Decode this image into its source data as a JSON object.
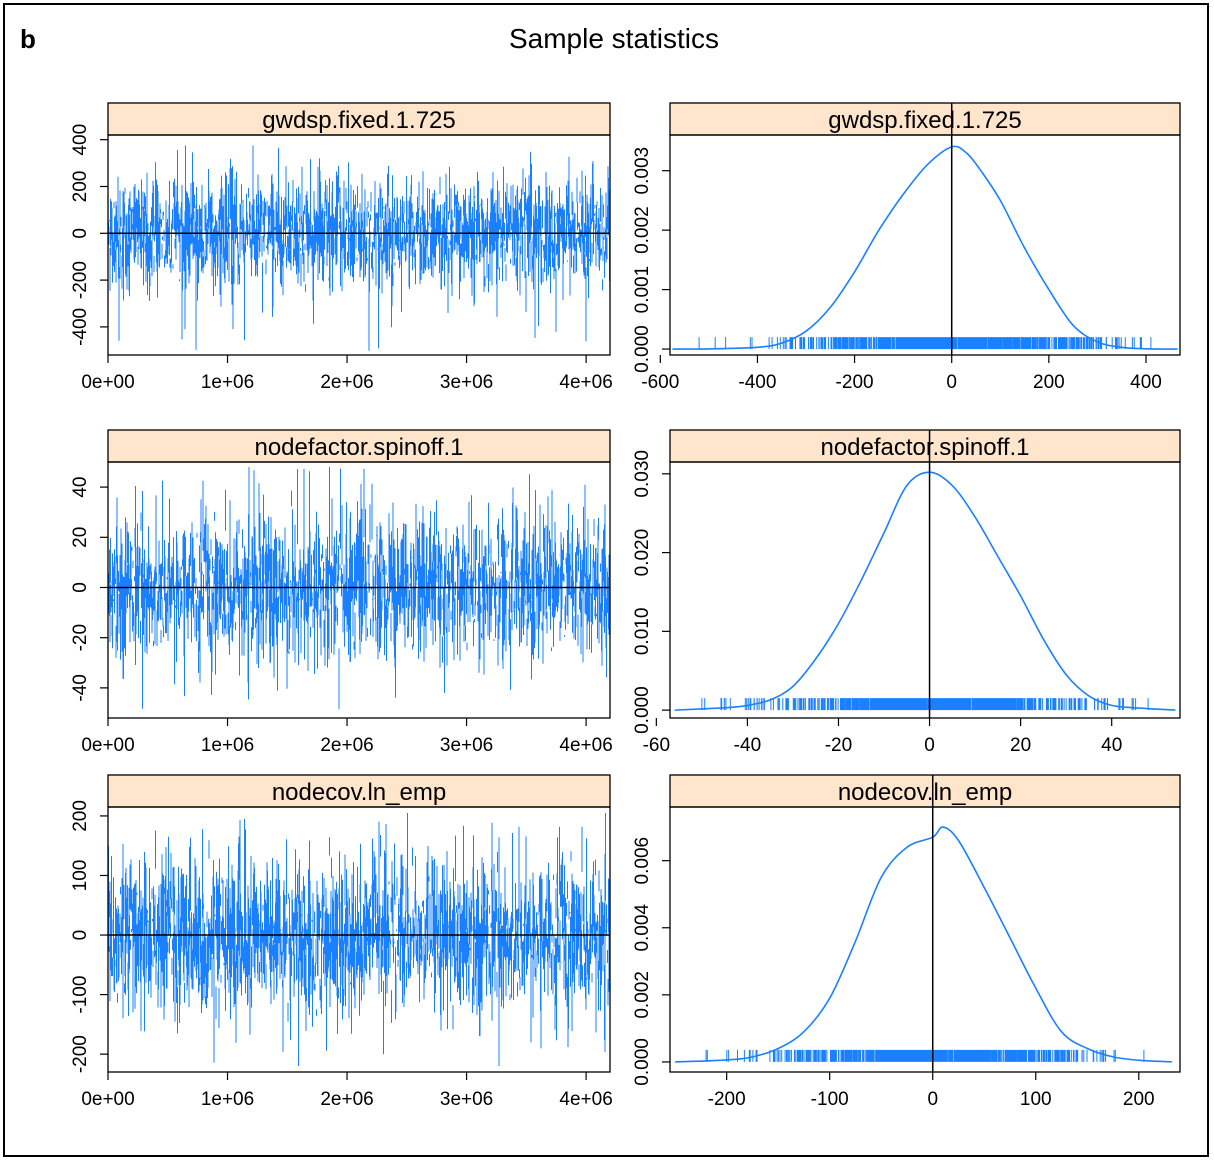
{
  "figure": {
    "panel_letter": "b",
    "title": "Sample statistics"
  },
  "chart_data": [
    {
      "type": "line",
      "strip_title": "gwdsp.fixed.1.725",
      "x_ticks": [
        "0e+00",
        "1e+06",
        "2e+06",
        "3e+06",
        "4e+06"
      ],
      "x_tick_values": [
        0,
        1000000,
        2000000,
        3000000,
        4000000
      ],
      "y_ticks": [
        "-400",
        "-200",
        "0",
        "200",
        "400"
      ],
      "y_tick_values": [
        -400,
        -200,
        0,
        200,
        400
      ],
      "xlim": [
        0,
        4200000
      ],
      "ylim": [
        -520,
        420
      ],
      "reference_line_y": 0,
      "series_summary": {
        "center": 0,
        "typical_range": [
          -250,
          250
        ],
        "min": -520,
        "max": 375,
        "n_points_x_max": 4200000
      },
      "color": "#1a80ff"
    },
    {
      "type": "line",
      "strip_title": "gwdsp.fixed.1.725",
      "x_ticks": [
        "-600",
        "-400",
        "-200",
        "0",
        "200",
        "400"
      ],
      "x_tick_values": [
        -600,
        -400,
        -200,
        0,
        200,
        400
      ],
      "y_ticks": [
        "0.000",
        "0.001",
        "0.002",
        "0.003"
      ],
      "y_tick_values": [
        0,
        0.001,
        0.002,
        0.003
      ],
      "xlim": [
        -580,
        470
      ],
      "ylim": [
        -0.0001,
        0.0036
      ],
      "reference_line_x": 0,
      "density": {
        "x": [
          -575,
          -500,
          -400,
          -350,
          -300,
          -250,
          -200,
          -150,
          -100,
          -50,
          0,
          30,
          60,
          100,
          150,
          200,
          250,
          300,
          350,
          400,
          465
        ],
        "y": [
          0,
          2e-06,
          3e-05,
          0.0001,
          0.0003,
          0.0007,
          0.0013,
          0.002,
          0.0026,
          0.0031,
          0.0034,
          0.0033,
          0.003,
          0.0025,
          0.0017,
          0.001,
          0.0004,
          0.00012,
          3e-05,
          5e-06,
          0
        ]
      },
      "rug_range": [
        -520,
        410
      ],
      "color": "#1a80ff"
    },
    {
      "type": "line",
      "strip_title": "nodefactor.spinoff.1",
      "x_ticks": [
        "0e+00",
        "1e+06",
        "2e+06",
        "3e+06",
        "4e+06"
      ],
      "x_tick_values": [
        0,
        1000000,
        2000000,
        3000000,
        4000000
      ],
      "y_ticks": [
        "-40",
        "-20",
        "0",
        "20",
        "40"
      ],
      "y_tick_values": [
        -40,
        -20,
        0,
        20,
        40
      ],
      "xlim": [
        0,
        4200000
      ],
      "ylim": [
        -52,
        50
      ],
      "reference_line_y": 0,
      "series_summary": {
        "center": 0,
        "typical_range": [
          -30,
          30
        ],
        "min": -50,
        "max": 48,
        "n_points_x_max": 4200000
      },
      "color": "#1a80ff"
    },
    {
      "type": "line",
      "strip_title": "nodefactor.spinoff.1",
      "x_ticks": [
        "-60",
        "-40",
        "-20",
        "0",
        "20",
        "40"
      ],
      "x_tick_values": [
        -60,
        -40,
        -20,
        0,
        20,
        40
      ],
      "y_ticks": [
        "0.000",
        "0.010",
        "0.020",
        "0.030"
      ],
      "y_tick_values": [
        0,
        0.01,
        0.02,
        0.03
      ],
      "xlim": [
        -57,
        55
      ],
      "ylim": [
        -0.001,
        0.0315
      ],
      "reference_line_x": 0,
      "density": {
        "x": [
          -56,
          -45,
          -40,
          -35,
          -30,
          -25,
          -20,
          -15,
          -10,
          -5,
          0,
          5,
          10,
          15,
          20,
          25,
          30,
          35,
          40,
          45,
          54
        ],
        "y": [
          0,
          0.0003,
          0.0006,
          0.0013,
          0.003,
          0.0065,
          0.011,
          0.0165,
          0.0225,
          0.0285,
          0.0302,
          0.0285,
          0.0245,
          0.0195,
          0.0145,
          0.009,
          0.0045,
          0.0018,
          0.0006,
          0.0003,
          0
        ]
      },
      "rug_range": [
        -50,
        48
      ],
      "color": "#1a80ff"
    },
    {
      "type": "line",
      "strip_title": "nodecov.ln_emp",
      "x_ticks": [
        "0e+00",
        "1e+06",
        "2e+06",
        "3e+06",
        "4e+06"
      ],
      "x_tick_values": [
        0,
        1000000,
        2000000,
        3000000,
        4000000
      ],
      "y_ticks": [
        "-200",
        "-100",
        "0",
        "100",
        "200"
      ],
      "y_tick_values": [
        -200,
        -100,
        0,
        100,
        200
      ],
      "xlim": [
        0,
        4200000
      ],
      "ylim": [
        -230,
        215
      ],
      "reference_line_y": 0,
      "series_summary": {
        "center": 0,
        "typical_range": [
          -140,
          140
        ],
        "min": -220,
        "max": 205,
        "n_points_x_max": 4200000
      },
      "color": "#1a80ff"
    },
    {
      "type": "line",
      "strip_title": "nodecov.ln_emp",
      "x_ticks": [
        "-200",
        "-100",
        "0",
        "100",
        "200"
      ],
      "x_tick_values": [
        -200,
        -100,
        0,
        100,
        200
      ],
      "y_ticks": [
        "0.000",
        "0.002",
        "0.004",
        "0.006"
      ],
      "y_tick_values": [
        0,
        0.002,
        0.004,
        0.006
      ],
      "xlim": [
        -255,
        240
      ],
      "ylim": [
        -0.0003,
        0.0076
      ],
      "reference_line_x": 0,
      "density": {
        "x": [
          -250,
          -200,
          -175,
          -150,
          -125,
          -100,
          -75,
          -50,
          -25,
          0,
          10,
          25,
          50,
          75,
          100,
          125,
          150,
          175,
          200,
          232
        ],
        "y": [
          0,
          6e-05,
          0.00015,
          0.0004,
          0.0009,
          0.0019,
          0.0036,
          0.0055,
          0.0064,
          0.0067,
          0.007,
          0.0066,
          0.0052,
          0.0037,
          0.0022,
          0.0009,
          0.0004,
          0.00015,
          5e-05,
          0
        ]
      },
      "rug_range": [
        -220,
        205
      ],
      "color": "#1a80ff"
    }
  ]
}
